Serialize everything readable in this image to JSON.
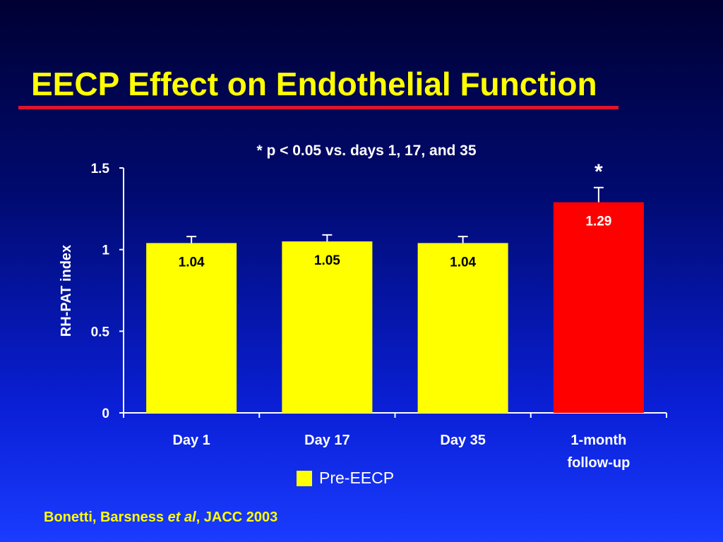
{
  "slide": {
    "title": "EECP Effect on Endothelial Function",
    "citation_authors": "Bonetti, Barsness ",
    "citation_etal": "et al",
    "citation_journal": ",  JACC 2003"
  },
  "colors": {
    "title": "#ffff00",
    "rule": "#e0142d",
    "bar_default": "#ffff00",
    "bar_highlight": "#ff0000",
    "label_on_yellow": "#000000",
    "label_on_red": "#ffffff"
  },
  "chart_data": {
    "type": "bar",
    "subtitle": "* p < 0.05 vs. days 1, 17, and 35",
    "ylabel": "RH-PAT index",
    "xlabel": "",
    "ylim": [
      0,
      1.5
    ],
    "yticks": [
      0,
      0.5,
      1,
      1.5
    ],
    "ytick_labels": [
      "0",
      "0.5",
      "1",
      "1.5"
    ],
    "categories": [
      "Day 1",
      "Day 17",
      "Day 35",
      "1-month follow-up"
    ],
    "category_label_lines": [
      [
        "Day 1"
      ],
      [
        "Day 17"
      ],
      [
        "Day 35"
      ],
      [
        "1-month",
        "follow-up"
      ]
    ],
    "values": [
      1.04,
      1.05,
      1.04,
      1.29
    ],
    "value_labels": [
      "1.04",
      "1.05",
      "1.04",
      "1.29"
    ],
    "error_upper": [
      1.08,
      1.09,
      1.08,
      1.38
    ],
    "significance_marks": [
      "",
      "",
      "",
      "*"
    ],
    "highlight_index": 3,
    "legend": [
      {
        "label": "Pre-EECP",
        "color": "#ffff00"
      }
    ],
    "grid": false
  }
}
